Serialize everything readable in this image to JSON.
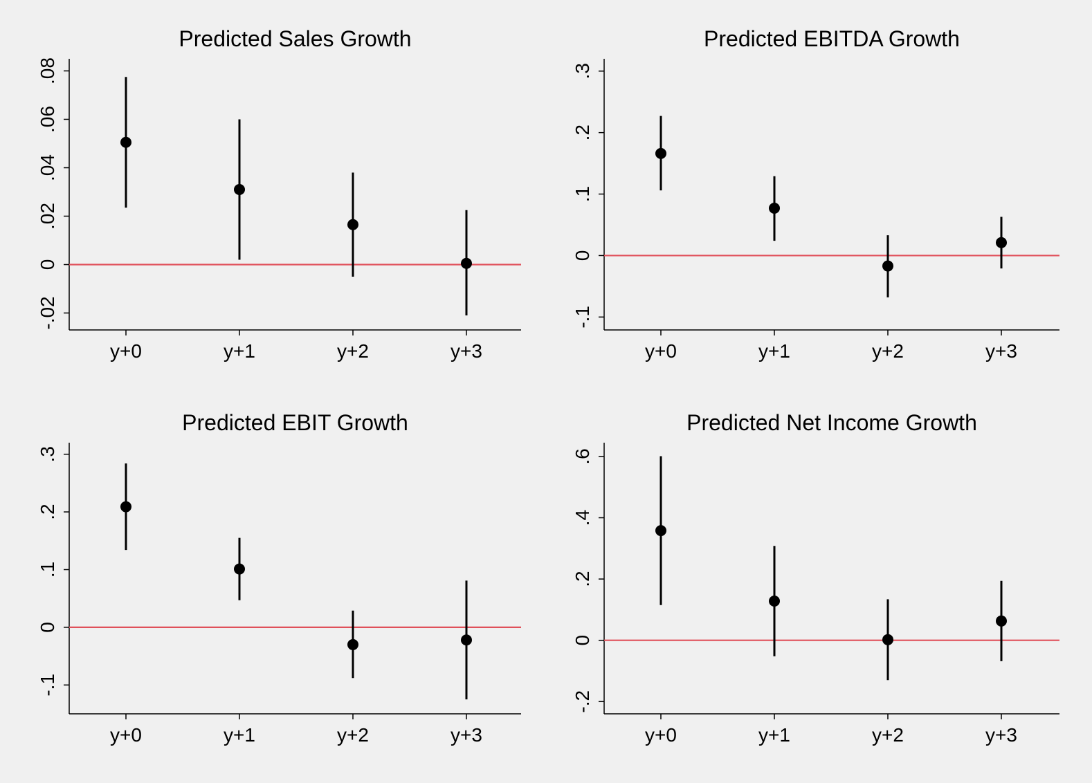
{
  "chart_data": [
    {
      "type": "scatter",
      "title": "Predicted Sales Growth",
      "categories": [
        "y+0",
        "y+1",
        "y+2",
        "y+3"
      ],
      "estimates": [
        0.0505,
        0.031,
        0.0165,
        0.0005
      ],
      "ci_low": [
        0.0235,
        0.002,
        -0.005,
        -0.021
      ],
      "ci_high": [
        0.0775,
        0.06,
        0.038,
        0.0225
      ],
      "ylim": [
        -0.027,
        0.085
      ],
      "yticks": [
        -0.02,
        0,
        0.02,
        0.04,
        0.06,
        0.08
      ],
      "ytick_labels": [
        "-.02",
        "0",
        ".02",
        ".04",
        ".06",
        ".08"
      ],
      "reference_line": 0,
      "reference_color": "#e0505a",
      "marker_color": "#000000"
    },
    {
      "type": "scatter",
      "title": "Predicted EBITDA Growth",
      "categories": [
        "y+0",
        "y+1",
        "y+2",
        "y+3"
      ],
      "estimates": [
        0.166,
        0.077,
        -0.017,
        0.021
      ],
      "ci_low": [
        0.106,
        0.024,
        -0.068,
        -0.021
      ],
      "ci_high": [
        0.227,
        0.129,
        0.033,
        0.063
      ],
      "ylim": [
        -0.121,
        0.32
      ],
      "yticks": [
        -0.1,
        0,
        0.1,
        0.2,
        0.3
      ],
      "ytick_labels": [
        "-.1",
        "0",
        ".1",
        ".2",
        ".3"
      ],
      "reference_line": 0,
      "reference_color": "#e0505a",
      "marker_color": "#000000"
    },
    {
      "type": "scatter",
      "title": "Predicted EBIT Growth",
      "categories": [
        "y+0",
        "y+1",
        "y+2",
        "y+3"
      ],
      "estimates": [
        0.209,
        0.101,
        -0.03,
        -0.022
      ],
      "ci_low": [
        0.134,
        0.047,
        -0.088,
        -0.125
      ],
      "ci_high": [
        0.284,
        0.155,
        0.029,
        0.081
      ],
      "ylim": [
        -0.15,
        0.32
      ],
      "yticks": [
        -0.1,
        0,
        0.1,
        0.2,
        0.3
      ],
      "ytick_labels": [
        "-.1",
        "0",
        ".1",
        ".2",
        ".3"
      ],
      "reference_line": 0,
      "reference_color": "#e0505a",
      "marker_color": "#000000"
    },
    {
      "type": "scatter",
      "title": "Predicted Net Income Growth",
      "categories": [
        "y+0",
        "y+1",
        "y+2",
        "y+3"
      ],
      "estimates": [
        0.358,
        0.128,
        0.002,
        0.063
      ],
      "ci_low": [
        0.115,
        -0.052,
        -0.13,
        -0.068
      ],
      "ci_high": [
        0.601,
        0.308,
        0.134,
        0.194
      ],
      "ylim": [
        -0.24,
        0.645
      ],
      "yticks": [
        -0.2,
        0,
        0.2,
        0.4,
        0.6
      ],
      "ytick_labels": [
        "-.2",
        "0",
        ".2",
        ".4",
        ".6"
      ],
      "reference_line": 0,
      "reference_color": "#e0505a",
      "marker_color": "#000000"
    }
  ]
}
